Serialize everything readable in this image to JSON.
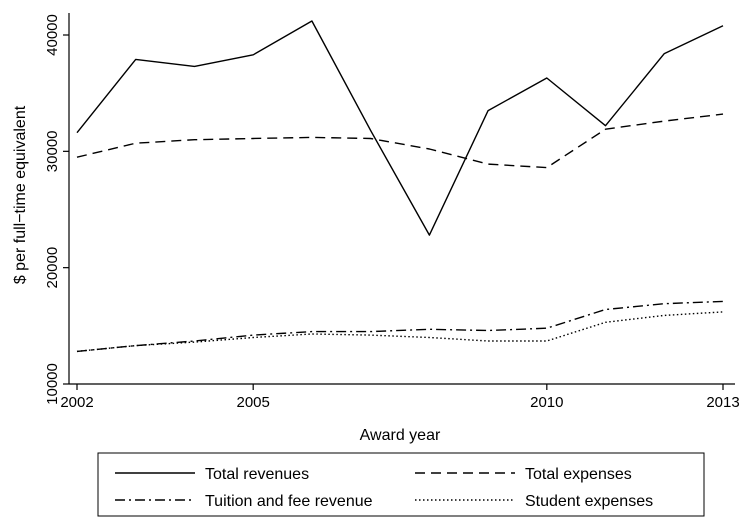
{
  "chart_data": {
    "type": "line",
    "xlabel": "Award year",
    "ylabel": "$ per full−time equivalent",
    "xlim": [
      2002,
      2013
    ],
    "ylim": [
      10000,
      40000
    ],
    "xticks": [
      {
        "value": 2002,
        "label": "2002"
      },
      {
        "value": 2005,
        "label": "2005"
      },
      {
        "value": 2010,
        "label": "2010"
      },
      {
        "value": 2013,
        "label": "2013"
      }
    ],
    "yticks": [
      {
        "value": 10000,
        "label": "10000"
      },
      {
        "value": 20000,
        "label": "20000"
      },
      {
        "value": 30000,
        "label": "30000"
      },
      {
        "value": 40000,
        "label": "40000"
      }
    ],
    "x": [
      2002,
      2003,
      2004,
      2005,
      2006,
      2007,
      2008,
      2009,
      2010,
      2011,
      2012,
      2013
    ],
    "series": [
      {
        "name": "Total revenues",
        "dash": "solid",
        "color": "#000000",
        "values": [
          31600,
          37900,
          37300,
          38300,
          41200,
          31800,
          22800,
          33500,
          36300,
          32200,
          38400,
          40800
        ]
      },
      {
        "name": "Total expenses",
        "dash": "dashed",
        "color": "#000000",
        "values": [
          29500,
          30700,
          31000,
          31100,
          31200,
          31100,
          30200,
          28900,
          28600,
          31900,
          32600,
          33200
        ]
      },
      {
        "name": "Tuition and fee revenue",
        "dash": "dashdot",
        "color": "#000000",
        "values": [
          12800,
          13300,
          13700,
          14200,
          14500,
          14500,
          14700,
          14600,
          14800,
          16400,
          16900,
          17100
        ]
      },
      {
        "name": "Student expenses",
        "dash": "dotted",
        "color": "#000000",
        "values": [
          12800,
          13300,
          13600,
          14000,
          14300,
          14200,
          14000,
          13700,
          13700,
          15300,
          15900,
          16200
        ]
      }
    ],
    "grid": false,
    "legend_position": "bottom"
  }
}
